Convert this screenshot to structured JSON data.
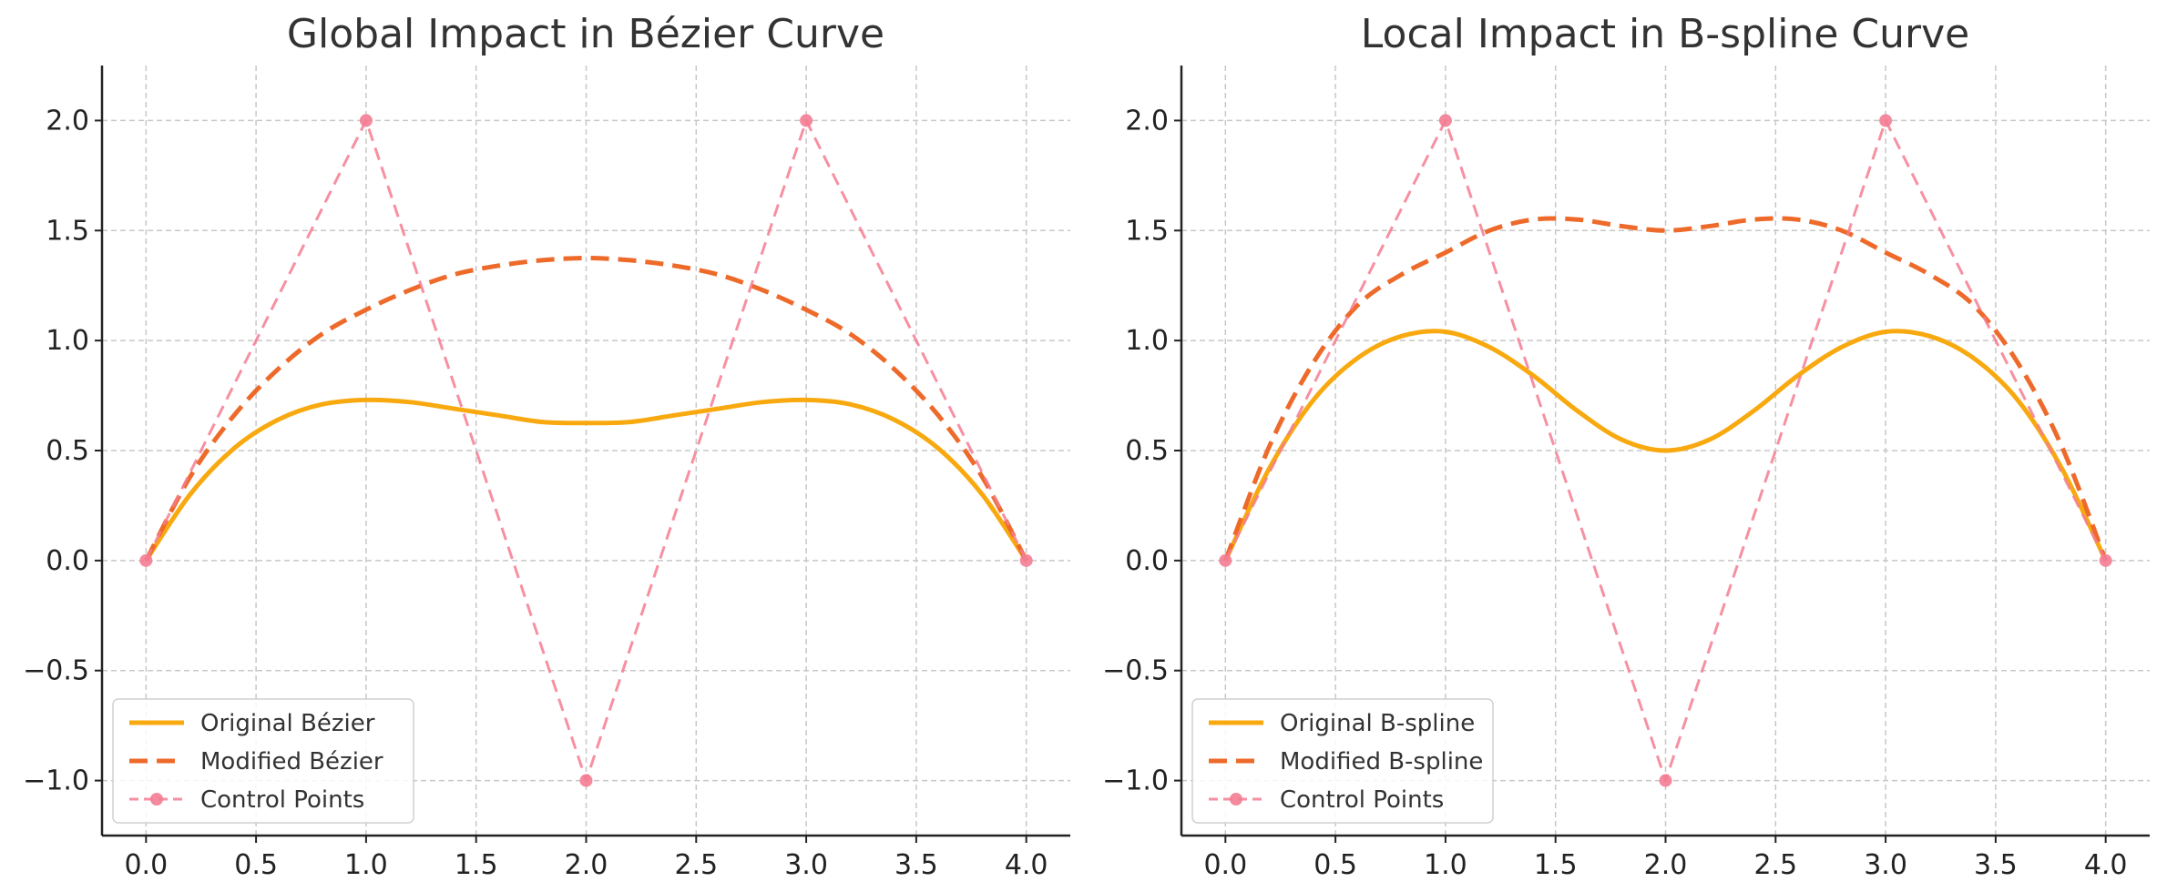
{
  "chart_data": [
    {
      "type": "line",
      "title": "Global Impact in Bézier Curve",
      "xlabel": "",
      "ylabel": "",
      "xlim": [
        -0.2,
        4.2
      ],
      "ylim": [
        -1.25,
        2.25
      ],
      "xticks": [
        0.0,
        0.5,
        1.0,
        1.5,
        2.0,
        2.5,
        3.0,
        3.5,
        4.0
      ],
      "yticks": [
        -1.0,
        -0.5,
        0.0,
        0.5,
        1.0,
        1.5,
        2.0
      ],
      "xtick_labels": [
        "0.0",
        "0.5",
        "1.0",
        "1.5",
        "2.0",
        "2.5",
        "3.0",
        "3.5",
        "4.0"
      ],
      "ytick_labels": [
        "−1.0",
        "−0.5",
        "0.0",
        "0.5",
        "1.0",
        "1.5",
        "2.0"
      ],
      "grid": true,
      "legend_position": "lower-left",
      "series": [
        {
          "name": "Original Bézier",
          "style": "solid",
          "color": "#F8A90F",
          "x": [
            0.0,
            0.2,
            0.4,
            0.6,
            0.8,
            1.0,
            1.2,
            1.4,
            1.6,
            1.8,
            2.0,
            2.2,
            2.4,
            2.6,
            2.8,
            3.0,
            3.2,
            3.4,
            3.6,
            3.8,
            4.0
          ],
          "y": [
            0.0,
            0.3,
            0.51,
            0.64,
            0.71,
            0.73,
            0.72,
            0.69,
            0.66,
            0.63,
            0.625,
            0.63,
            0.66,
            0.69,
            0.72,
            0.73,
            0.71,
            0.64,
            0.51,
            0.3,
            0.0
          ]
        },
        {
          "name": "Modified Bézier",
          "style": "dashed",
          "color": "#EE6A2A",
          "x": [
            0.0,
            0.2,
            0.4,
            0.6,
            0.8,
            1.0,
            1.2,
            1.4,
            1.6,
            1.8,
            2.0,
            2.2,
            2.4,
            2.6,
            2.8,
            3.0,
            3.2,
            3.4,
            3.6,
            3.8,
            4.0
          ],
          "y": [
            0.0,
            0.38,
            0.66,
            0.87,
            1.03,
            1.14,
            1.23,
            1.3,
            1.34,
            1.365,
            1.375,
            1.365,
            1.34,
            1.3,
            1.23,
            1.14,
            1.03,
            0.87,
            0.66,
            0.38,
            0.0
          ]
        },
        {
          "name": "Control Points",
          "style": "dashed-marker",
          "color": "#F47C92",
          "x": [
            0,
            1,
            2,
            3,
            4
          ],
          "y": [
            0,
            2,
            -1,
            2,
            0
          ]
        }
      ]
    },
    {
      "type": "line",
      "title": "Local Impact in B-spline Curve",
      "xlabel": "",
      "ylabel": "",
      "xlim": [
        -0.2,
        4.2
      ],
      "ylim": [
        -1.25,
        2.25
      ],
      "xticks": [
        0.0,
        0.5,
        1.0,
        1.5,
        2.0,
        2.5,
        3.0,
        3.5,
        4.0
      ],
      "yticks": [
        -1.0,
        -0.5,
        0.0,
        0.5,
        1.0,
        1.5,
        2.0
      ],
      "xtick_labels": [
        "0.0",
        "0.5",
        "1.0",
        "1.5",
        "2.0",
        "2.5",
        "3.0",
        "3.5",
        "4.0"
      ],
      "ytick_labels": [
        "−1.0",
        "−0.5",
        "0.0",
        "0.5",
        "1.0",
        "1.5",
        "2.0"
      ],
      "grid": true,
      "legend_position": "lower-left",
      "series": [
        {
          "name": "Original B-spline",
          "style": "solid",
          "color": "#F8A90F",
          "x": [
            0.0,
            0.2,
            0.4,
            0.6,
            0.8,
            1.0,
            1.2,
            1.4,
            1.6,
            1.8,
            2.0,
            2.2,
            2.4,
            2.6,
            2.8,
            3.0,
            3.2,
            3.4,
            3.6,
            3.8,
            4.0
          ],
          "y": [
            0.0,
            0.42,
            0.73,
            0.92,
            1.02,
            1.04,
            0.97,
            0.84,
            0.68,
            0.55,
            0.5,
            0.55,
            0.68,
            0.84,
            0.97,
            1.04,
            1.02,
            0.92,
            0.73,
            0.42,
            0.0
          ]
        },
        {
          "name": "Modified B-spline",
          "style": "dashed",
          "color": "#EE6A2A",
          "x": [
            0.0,
            0.2,
            0.4,
            0.6,
            0.8,
            1.0,
            1.2,
            1.4,
            1.6,
            1.8,
            2.0,
            2.2,
            2.4,
            2.6,
            2.8,
            3.0,
            3.2,
            3.4,
            3.6,
            3.8,
            4.0
          ],
          "y": [
            0.0,
            0.52,
            0.9,
            1.16,
            1.3,
            1.4,
            1.5,
            1.55,
            1.55,
            1.52,
            1.5,
            1.52,
            1.55,
            1.55,
            1.5,
            1.4,
            1.3,
            1.16,
            0.9,
            0.52,
            0.0
          ]
        },
        {
          "name": "Control Points",
          "style": "dashed-marker",
          "color": "#F47C92",
          "x": [
            0,
            1,
            2,
            3,
            4
          ],
          "y": [
            0,
            2,
            -1,
            2,
            0
          ]
        }
      ]
    }
  ]
}
